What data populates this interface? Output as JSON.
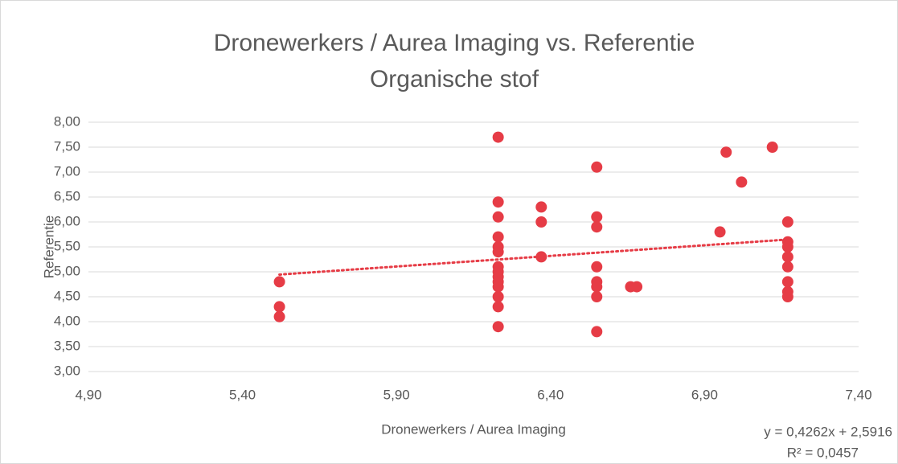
{
  "chart_data": {
    "type": "scatter",
    "title": "Dronewerkers / Aurea Imaging vs. Referentie",
    "subtitle": "Organische stof",
    "x_label": "Dronewerkers / Aurea Imaging",
    "y_label": "Referentie",
    "color": "#e63c46",
    "x": [
      5.52,
      5.52,
      5.52,
      6.23,
      6.23,
      6.23,
      6.23,
      6.23,
      6.23,
      6.23,
      6.23,
      6.23,
      6.23,
      6.23,
      6.23,
      6.23,
      6.23,
      6.37,
      6.37,
      6.37,
      6.55,
      6.55,
      6.55,
      6.55,
      6.55,
      6.55,
      6.55,
      6.55,
      6.66,
      6.68,
      6.95,
      6.97,
      7.02,
      7.12,
      7.17,
      7.17,
      7.17,
      7.17,
      7.17,
      7.17,
      7.17,
      7.17
    ],
    "values": [
      4.8,
      4.3,
      4.1,
      7.7,
      6.4,
      6.1,
      5.7,
      5.5,
      5.4,
      5.1,
      5.0,
      4.9,
      4.8,
      4.7,
      4.5,
      4.3,
      3.9,
      6.3,
      6.0,
      5.3,
      7.1,
      6.1,
      5.9,
      5.1,
      4.8,
      4.7,
      4.5,
      3.8,
      4.7,
      4.7,
      5.8,
      7.4,
      6.8,
      7.5,
      6.0,
      5.6,
      5.5,
      5.3,
      5.1,
      4.8,
      4.6,
      4.5
    ],
    "trendline": {
      "slope": 0.4262,
      "intercept": 2.5916,
      "equation": "y = 0,4262x + 2,5916",
      "r2": "R² = 0,0457"
    },
    "xlim": [
      4.9,
      7.4
    ],
    "xticks": [
      {
        "value": 4.9,
        "label": "4,90"
      },
      {
        "value": 5.4,
        "label": "5,40"
      },
      {
        "value": 5.9,
        "label": "5,90"
      },
      {
        "value": 6.4,
        "label": "6,40"
      },
      {
        "value": 6.9,
        "label": "6,90"
      },
      {
        "value": 7.4,
        "label": "7,40"
      }
    ],
    "ylim": [
      3,
      8
    ],
    "yticks": [
      {
        "value": 3,
        "label": "3,00"
      },
      {
        "value": 3.5,
        "label": "3,50"
      },
      {
        "value": 4,
        "label": "4,00"
      },
      {
        "value": 4.5,
        "label": "4,50"
      },
      {
        "value": 5,
        "label": "5,00"
      },
      {
        "value": 5.5,
        "label": "5,50"
      },
      {
        "value": 6,
        "label": "6,00"
      },
      {
        "value": 6.5,
        "label": "6,50"
      },
      {
        "value": 7,
        "label": "7,00"
      },
      {
        "value": 7.5,
        "label": "7,50"
      },
      {
        "value": 8,
        "label": "8,00"
      }
    ],
    "grid": true
  }
}
